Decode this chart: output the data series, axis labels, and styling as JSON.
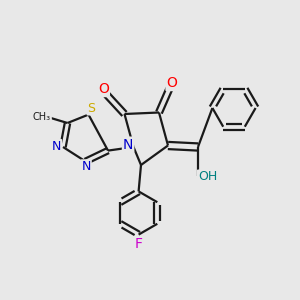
{
  "background_color": "#e8e8e8",
  "bond_color": "#1a1a1a",
  "atom_colors": {
    "O": "#ff0000",
    "N": "#0000cc",
    "S": "#ccaa00",
    "F": "#cc00cc",
    "OH": "#008080",
    "C": "#1a1a1a"
  }
}
